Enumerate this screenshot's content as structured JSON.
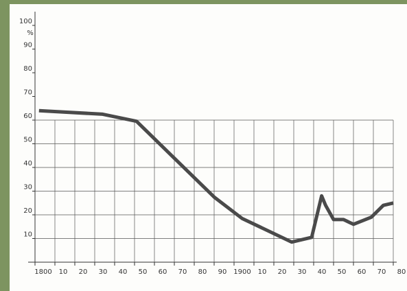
{
  "chart_data": {
    "type": "line",
    "y_unit": "%",
    "x": [
      1802,
      1834,
      1851,
      1890,
      1904,
      1929,
      1939,
      1944,
      1946,
      1950,
      1955,
      1960,
      1969,
      1975,
      1980
    ],
    "series": [
      {
        "color": "#4a4a4a",
        "values": [
          64,
          62.5,
          59.5,
          27.5,
          18.5,
          8.5,
          10.5,
          28,
          24,
          18,
          18,
          16,
          19,
          24,
          25
        ]
      }
    ],
    "xlim": [
      1800,
      1980
    ],
    "ylim": [
      0,
      100
    ],
    "xticks": [
      {
        "value": 1800,
        "label": "1800"
      },
      {
        "value": 1810,
        "label": "10"
      },
      {
        "value": 1820,
        "label": "20"
      },
      {
        "value": 1830,
        "label": "30"
      },
      {
        "value": 1840,
        "label": "40"
      },
      {
        "value": 1850,
        "label": "50"
      },
      {
        "value": 1860,
        "label": "60"
      },
      {
        "value": 1870,
        "label": "70"
      },
      {
        "value": 1880,
        "label": "80"
      },
      {
        "value": 1890,
        "label": "90"
      },
      {
        "value": 1900,
        "label": "1900"
      },
      {
        "value": 1910,
        "label": "10"
      },
      {
        "value": 1920,
        "label": "20"
      },
      {
        "value": 1930,
        "label": "30"
      },
      {
        "value": 1940,
        "label": "40"
      },
      {
        "value": 1950,
        "label": "50"
      },
      {
        "value": 1960,
        "label": "60"
      },
      {
        "value": 1970,
        "label": "70"
      },
      {
        "value": 1980,
        "label": "80"
      }
    ],
    "yticks": [
      10,
      20,
      30,
      40,
      50,
      60,
      70,
      80,
      90,
      100
    ],
    "grid": true
  }
}
